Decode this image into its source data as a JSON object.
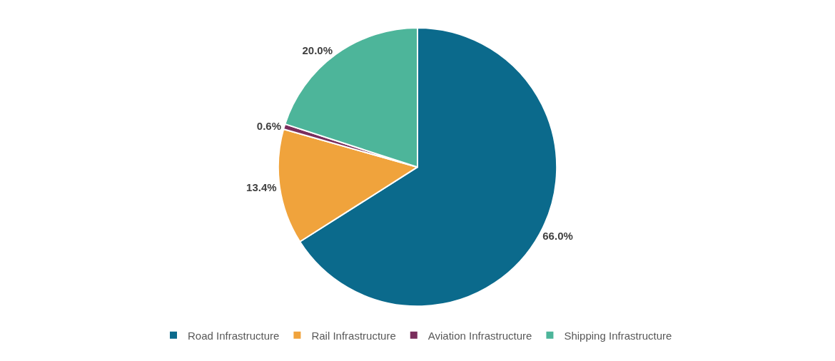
{
  "chart_data": {
    "type": "pie",
    "categories": [
      "Road Infrastructure",
      "Rail Infrastructure",
      "Aviation Infrastructure",
      "Shipping Infrastructure"
    ],
    "values": [
      66.0,
      13.4,
      0.6,
      20.0
    ],
    "value_labels": [
      "66.0%",
      "13.4%",
      "0.6%",
      "20.0%"
    ],
    "colors": [
      "#0b6a8c",
      "#f0a33c",
      "#7a2e5c",
      "#4db59a"
    ],
    "legend": "bottom"
  }
}
